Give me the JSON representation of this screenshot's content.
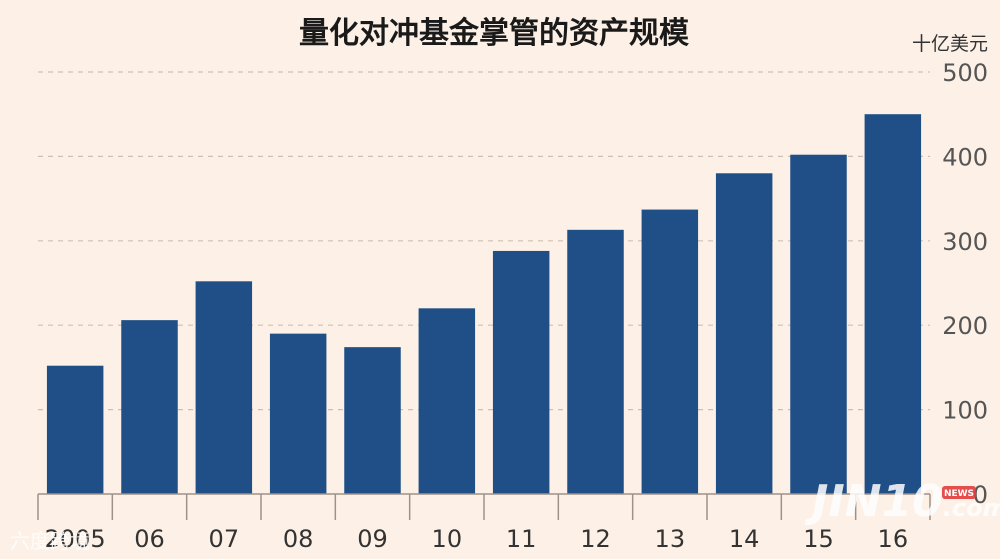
{
  "chart_data": {
    "type": "bar",
    "title": "量化对冲基金掌管的资产规模",
    "unit": "十亿美元",
    "categories": [
      "2005",
      "06",
      "07",
      "08",
      "09",
      "10",
      "11",
      "12",
      "13",
      "14",
      "15",
      "16"
    ],
    "values": [
      152,
      206,
      252,
      190,
      174,
      220,
      288,
      313,
      337,
      380,
      402,
      450
    ],
    "yticks": [
      0,
      100,
      200,
      300,
      400,
      500
    ],
    "ylim": [
      0,
      500
    ],
    "grid": true,
    "y_axis_side": "right",
    "colors": {
      "bar": "#1f4f86",
      "background": "#fdf1e7"
    }
  },
  "watermarks": {
    "left": "六度跨境",
    "right": "JIN10",
    "right_suffix": ".com",
    "badge": "NEWS"
  }
}
